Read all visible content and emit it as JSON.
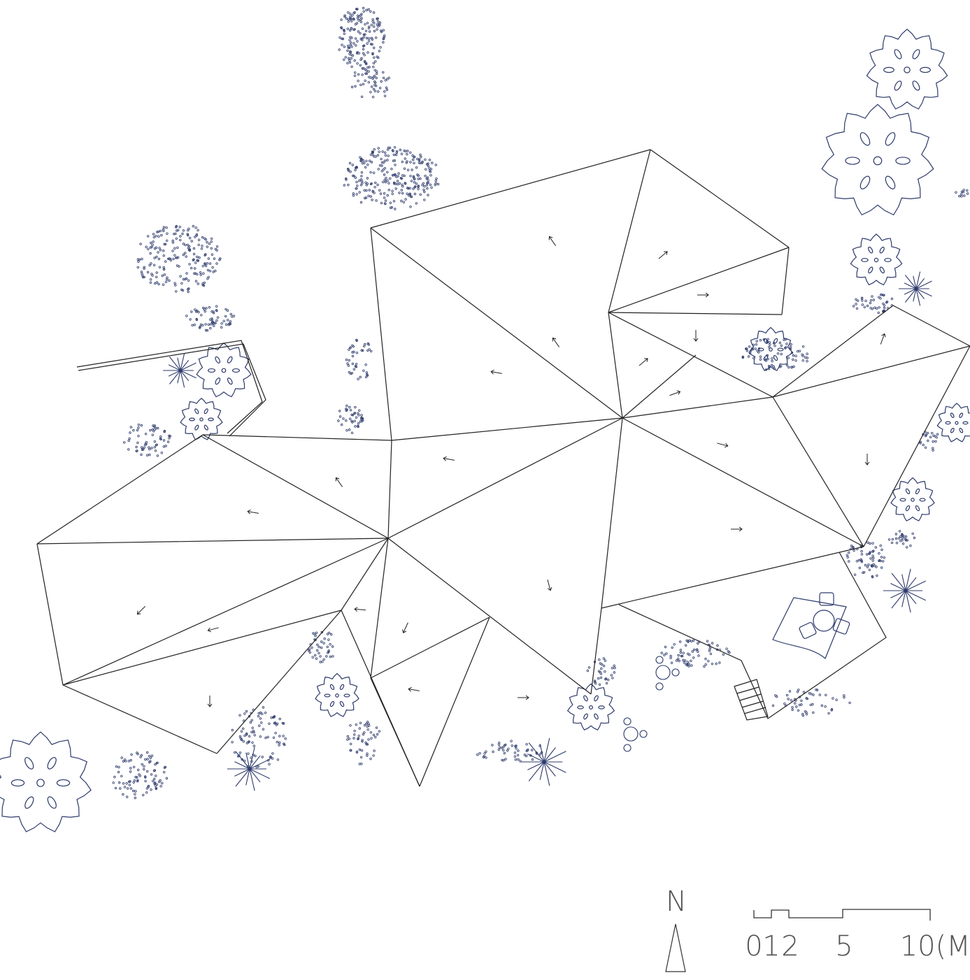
{
  "north": {
    "label": "N"
  },
  "scale_bar": {
    "labels": [
      "0",
      "1",
      "2",
      "5",
      "10(M)"
    ]
  }
}
